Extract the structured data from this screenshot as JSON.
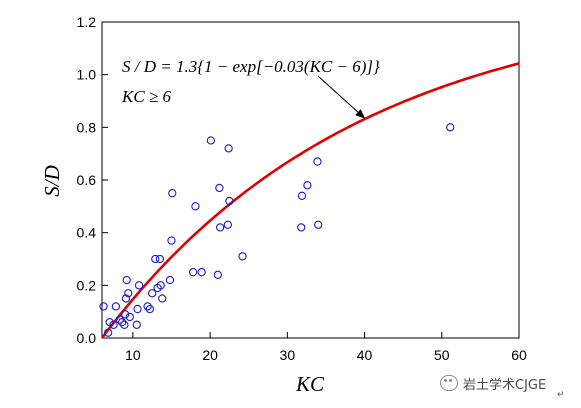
{
  "chart_data": {
    "type": "scatter",
    "xlabel": "KC",
    "ylabel": "S/D",
    "xlim": [
      6,
      60
    ],
    "ylim": [
      0.0,
      1.2
    ],
    "x_ticks": [
      10,
      20,
      30,
      40,
      50,
      60
    ],
    "y_ticks": [
      0.0,
      0.2,
      0.4,
      0.6,
      0.8,
      1.0,
      1.2
    ],
    "x_tick_labels": [
      "10",
      "20",
      "30",
      "40",
      "50",
      "60"
    ],
    "y_tick_labels": [
      "0.0",
      "0.2",
      "0.4",
      "0.6",
      "0.8",
      "1.0",
      "1.2"
    ],
    "grid": false,
    "series": [
      {
        "kind": "scatter",
        "marker": "open-circle",
        "color": "#1a1acc",
        "points": [
          [
            6.2,
            0.12
          ],
          [
            6.8,
            0.02
          ],
          [
            7.0,
            0.06
          ],
          [
            7.5,
            0.05
          ],
          [
            7.8,
            0.12
          ],
          [
            8.3,
            0.07
          ],
          [
            8.6,
            0.06
          ],
          [
            8.9,
            0.05
          ],
          [
            9.0,
            0.09
          ],
          [
            9.1,
            0.15
          ],
          [
            9.2,
            0.22
          ],
          [
            9.4,
            0.17
          ],
          [
            9.6,
            0.08
          ],
          [
            10.5,
            0.05
          ],
          [
            10.6,
            0.11
          ],
          [
            10.8,
            0.2
          ],
          [
            11.9,
            0.12
          ],
          [
            12.2,
            0.11
          ],
          [
            12.5,
            0.17
          ],
          [
            12.9,
            0.3
          ],
          [
            13.2,
            0.19
          ],
          [
            13.5,
            0.3
          ],
          [
            13.6,
            0.2
          ],
          [
            13.8,
            0.15
          ],
          [
            14.8,
            0.22
          ],
          [
            15.0,
            0.37
          ],
          [
            15.1,
            0.55
          ],
          [
            17.8,
            0.25
          ],
          [
            18.1,
            0.5
          ],
          [
            18.9,
            0.25
          ],
          [
            20.1,
            0.75
          ],
          [
            21.0,
            0.24
          ],
          [
            21.2,
            0.57
          ],
          [
            21.3,
            0.42
          ],
          [
            22.3,
            0.43
          ],
          [
            22.4,
            0.72
          ],
          [
            22.5,
            0.52
          ],
          [
            24.2,
            0.31
          ],
          [
            31.8,
            0.42
          ],
          [
            31.9,
            0.54
          ],
          [
            32.6,
            0.58
          ],
          [
            33.9,
            0.67
          ],
          [
            34.0,
            0.43
          ],
          [
            51.1,
            0.8
          ]
        ]
      },
      {
        "kind": "line",
        "color": "#e00000",
        "formula": "S/D = 1.3(1 - exp(-0.03(KC - 6))), KC >= 6"
      }
    ],
    "annotation": {
      "line1": "S / D = 1.3{1 − exp[−0.03(KC − 6)]}",
      "line2": "KC ≥ 6",
      "arrow_points_to_x": 40
    }
  },
  "watermark": {
    "icon": "wechat-icon",
    "text": "岩土学术CJGE"
  },
  "return_mark": "↵"
}
